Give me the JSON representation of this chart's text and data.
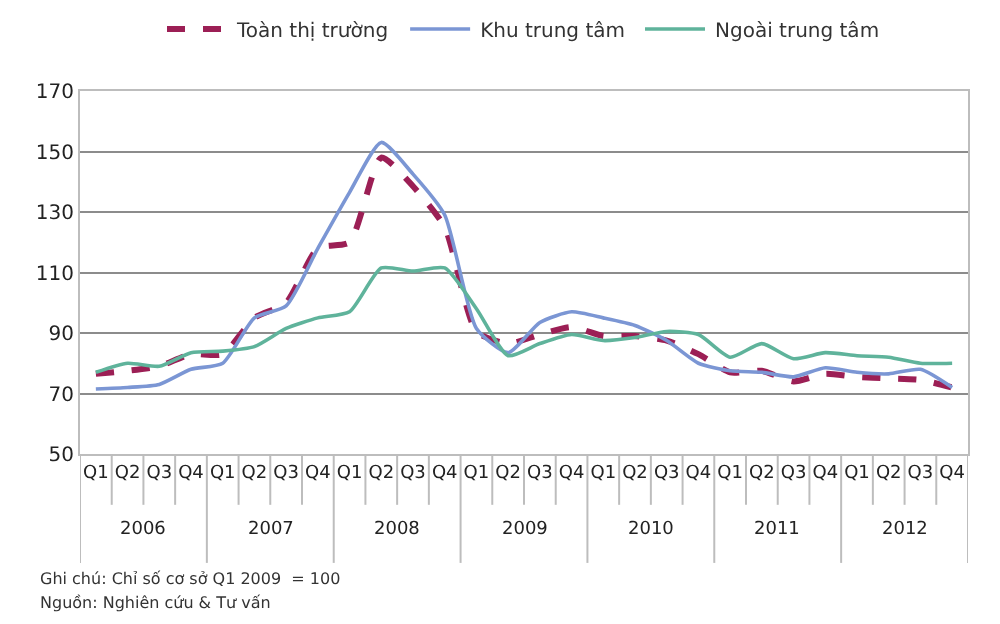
{
  "chart_data": {
    "type": "line",
    "categories": [
      "Q1",
      "Q2",
      "Q3",
      "Q4",
      "Q1",
      "Q2",
      "Q3",
      "Q4",
      "Q1",
      "Q2",
      "Q3",
      "Q4",
      "Q1",
      "Q2",
      "Q3",
      "Q4",
      "Q1",
      "Q2",
      "Q3",
      "Q4",
      "Q1",
      "Q2",
      "Q3",
      "Q4",
      "Q1",
      "Q2",
      "Q3",
      "Q4"
    ],
    "series": [
      {
        "name": "Toàn thị trường",
        "color": "#9c1f55",
        "line_style": "dashed",
        "values": [
          76.5,
          77.5,
          79,
          83,
          83,
          95,
          100,
          118,
          120,
          148,
          138.5,
          125,
          90.5,
          86.5,
          89.5,
          92,
          89,
          89,
          87.5,
          83,
          77,
          77.5,
          74,
          76.5,
          75.5,
          75,
          74.5,
          72
        ]
      },
      {
        "name": "Khu trung tâm",
        "color": "#7b96d4",
        "line_style": "solid",
        "values": [
          71.5,
          72,
          73,
          78,
          80,
          95,
          99,
          118,
          136.5,
          153,
          142.5,
          129,
          91.5,
          83.5,
          93.5,
          97,
          95,
          92.5,
          87.5,
          80,
          77.5,
          77,
          75.5,
          78.5,
          77,
          76.5,
          78,
          72
        ]
      },
      {
        "name": "Ngoài trung tâm",
        "color": "#5fb39b",
        "line_style": "solid",
        "values": [
          77,
          80,
          79,
          83.5,
          84,
          85.5,
          91.5,
          95,
          97,
          111.5,
          110.5,
          111.5,
          98,
          82.5,
          86.5,
          89.5,
          87.5,
          88.5,
          90.5,
          89.5,
          82,
          86.5,
          81.5,
          83.5,
          82.5,
          82,
          80,
          80
        ]
      }
    ],
    "ylim": [
      50,
      170
    ],
    "yticks": [
      50,
      70,
      90,
      110,
      130,
      150,
      170
    ],
    "grid": "y",
    "legend": "top",
    "marker": "none",
    "annotations": [
      {
        "text": "2006"
      },
      {
        "text": "2007"
      },
      {
        "text": "2008"
      },
      {
        "text": "2009"
      },
      {
        "text": "2010"
      },
      {
        "text": "2011"
      },
      {
        "text": "2012"
      },
      "Ghi chú: Chỉ số cơ sở Q1 2009  = 100",
      "Nguồn: Nghiên cứu & Tư vấn"
    ]
  }
}
